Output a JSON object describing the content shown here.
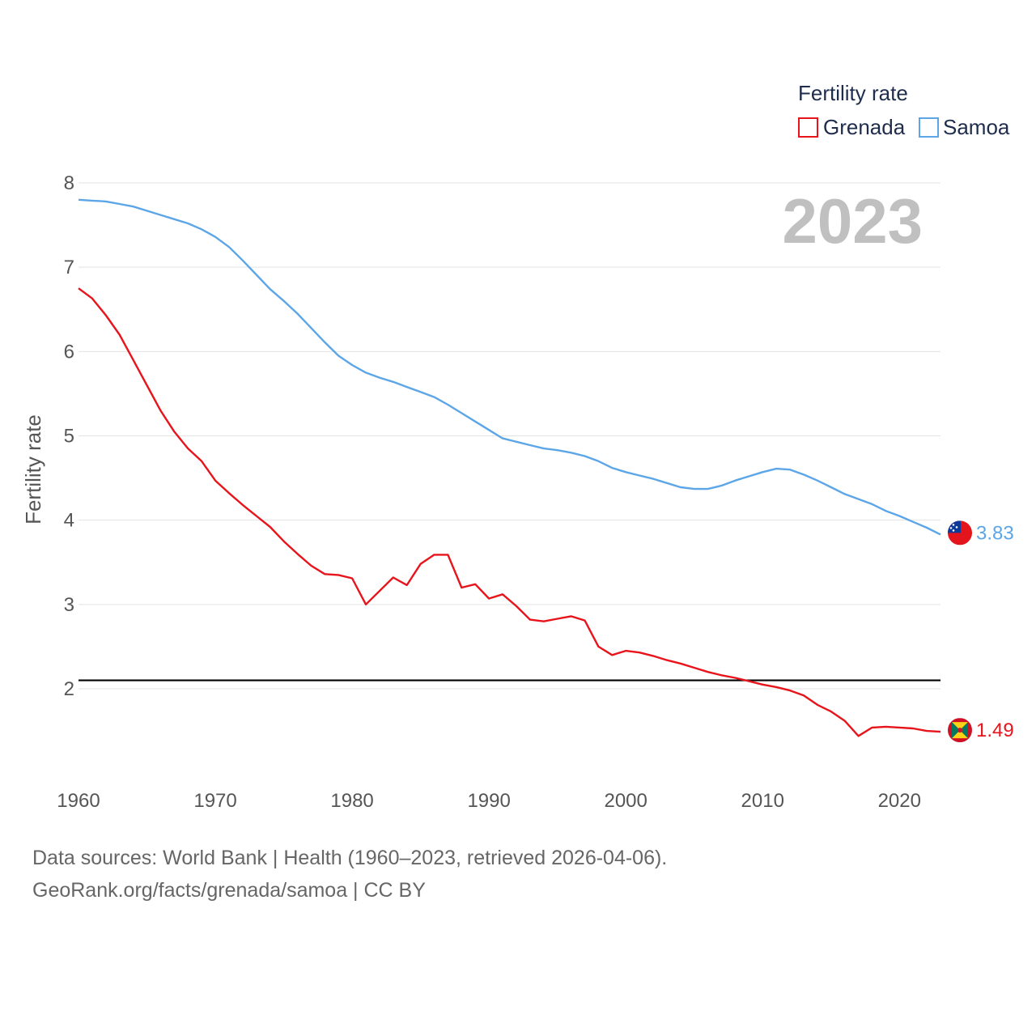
{
  "chart_data": {
    "type": "line",
    "legend_title": "Fertility rate",
    "ylabel": "Fertility rate",
    "xlabel": "",
    "year_label": "2023",
    "xlim": [
      1960,
      2023
    ],
    "ylim": [
      1,
      8
    ],
    "y_ticks": [
      2,
      3,
      4,
      5,
      6,
      7,
      8
    ],
    "x_ticks": [
      1960,
      1970,
      1980,
      1990,
      2000,
      2010,
      2020
    ],
    "reference_line": {
      "value": 2.1,
      "color": "#000000"
    },
    "x": [
      1960,
      1961,
      1962,
      1963,
      1964,
      1965,
      1966,
      1967,
      1968,
      1969,
      1970,
      1971,
      1972,
      1973,
      1974,
      1975,
      1976,
      1977,
      1978,
      1979,
      1980,
      1981,
      1982,
      1983,
      1984,
      1985,
      1986,
      1987,
      1988,
      1989,
      1990,
      1991,
      1992,
      1993,
      1994,
      1995,
      1996,
      1997,
      1998,
      1999,
      2000,
      2001,
      2002,
      2003,
      2004,
      2005,
      2006,
      2007,
      2008,
      2009,
      2010,
      2011,
      2012,
      2013,
      2014,
      2015,
      2016,
      2017,
      2018,
      2019,
      2020,
      2021,
      2022,
      2023
    ],
    "series": [
      {
        "name": "Grenada",
        "color": "#e8141b",
        "end_label": "1.49",
        "values": [
          6.75,
          6.63,
          6.43,
          6.2,
          5.9,
          5.6,
          5.3,
          5.05,
          4.85,
          4.7,
          4.47,
          4.32,
          4.18,
          4.05,
          3.92,
          3.75,
          3.6,
          3.46,
          3.36,
          3.35,
          3.31,
          3.0,
          3.16,
          3.32,
          3.23,
          3.48,
          3.59,
          3.59,
          3.2,
          3.24,
          3.07,
          3.12,
          2.98,
          2.82,
          2.8,
          2.83,
          2.86,
          2.81,
          2.5,
          2.4,
          2.45,
          2.43,
          2.39,
          2.34,
          2.3,
          2.25,
          2.2,
          2.16,
          2.13,
          2.09,
          2.05,
          2.02,
          1.98,
          1.92,
          1.81,
          1.73,
          1.62,
          1.44,
          1.54,
          1.55,
          1.54,
          1.53,
          1.5,
          1.49
        ]
      },
      {
        "name": "Samoa",
        "color": "#5ca6e8",
        "end_label": "3.83",
        "values": [
          7.8,
          7.79,
          7.78,
          7.75,
          7.72,
          7.67,
          7.62,
          7.57,
          7.52,
          7.45,
          7.36,
          7.24,
          7.08,
          6.91,
          6.74,
          6.6,
          6.45,
          6.28,
          6.11,
          5.95,
          5.84,
          5.75,
          5.69,
          5.64,
          5.58,
          5.52,
          5.46,
          5.37,
          5.27,
          5.17,
          5.07,
          4.97,
          4.93,
          4.89,
          4.85,
          4.83,
          4.8,
          4.76,
          4.7,
          4.62,
          4.57,
          4.53,
          4.49,
          4.44,
          4.39,
          4.37,
          4.37,
          4.41,
          4.47,
          4.52,
          4.57,
          4.61,
          4.6,
          4.54,
          4.47,
          4.39,
          4.31,
          4.25,
          4.19,
          4.11,
          4.05,
          3.98,
          3.91,
          3.83
        ]
      }
    ]
  },
  "footer": {
    "line1": "Data sources: World Bank | Health (1960–2023, retrieved 2026-04-06).",
    "line2": "GeoRank.org/facts/grenada/samoa | CC BY"
  },
  "icons": {
    "grenada_marker": "grenada-flag-icon",
    "samoa_marker": "samoa-flag-icon"
  }
}
